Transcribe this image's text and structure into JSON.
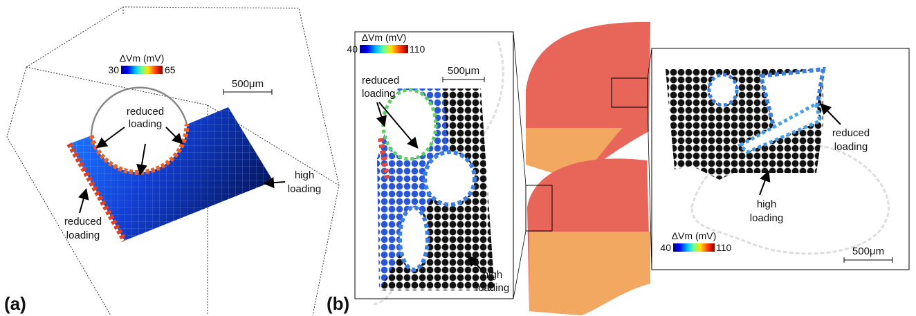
{
  "panel_a": {
    "label": "(a)",
    "colorbar": {
      "title": "ΔVm (mV)",
      "min": 30,
      "max": 65
    },
    "scale_bar": "500μm",
    "annotations": [
      [
        "reduced",
        "loading"
      ],
      [
        "reduced",
        "loading"
      ],
      [
        "high",
        "loading"
      ]
    ]
  },
  "panel_b": {
    "label": "(b)",
    "left_inset": {
      "colorbar": {
        "title": "ΔVm (mV)",
        "min": 40,
        "max": 110
      },
      "scale_bar": "500μm",
      "annotations": [
        [
          "reduced",
          "loading"
        ],
        [
          "high",
          "loading"
        ]
      ]
    },
    "right_inset": {
      "colorbar": {
        "title": "ΔVm (mV)",
        "min": 40,
        "max": 110
      },
      "scale_bar": "500μm",
      "annotations": [
        [
          "reduced",
          "loading"
        ],
        [
          "high",
          "loading"
        ]
      ]
    }
  }
}
